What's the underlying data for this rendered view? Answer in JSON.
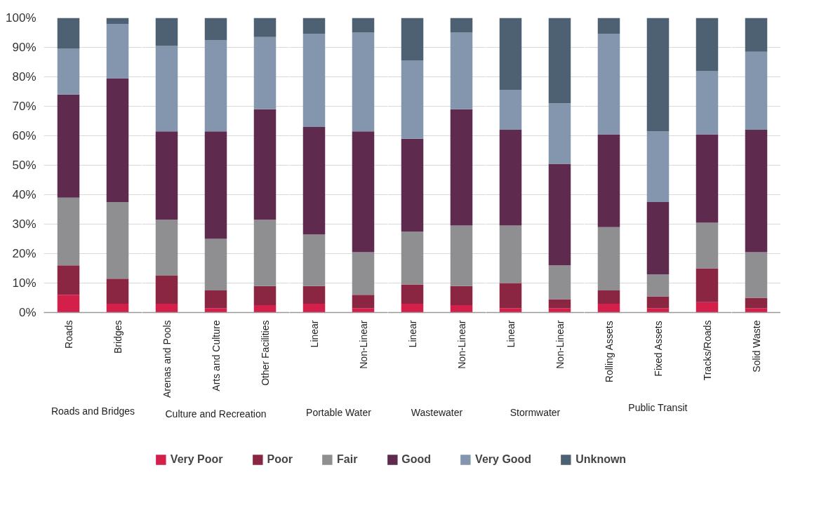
{
  "chart_data": [
    {
      "type": "bar",
      "stacked": true,
      "xlabel": "Roads and Bridges",
      "categories": [
        "Roads",
        "Bridges"
      ],
      "series": [
        {
          "name": "Very Poor",
          "color": "#d41f4b",
          "values": [
            6,
            3
          ]
        },
        {
          "name": "Poor",
          "color": "#8b2642",
          "values": [
            10,
            8.5
          ]
        },
        {
          "name": "Fair",
          "color": "#8f8f91",
          "values": [
            23,
            26
          ]
        },
        {
          "name": "Good",
          "color": "#5e2b4f",
          "values": [
            35,
            42
          ]
        },
        {
          "name": "Very Good",
          "color": "#8496ae",
          "values": [
            15.5,
            18.5
          ]
        },
        {
          "name": "Unknown",
          "color": "#4d6172",
          "values": [
            10.5,
            2
          ]
        }
      ],
      "ylim": [
        0,
        100
      ],
      "yticks": [
        {
          "value": 0,
          "label": "0%"
        },
        {
          "value": 10,
          "label": "10%"
        },
        {
          "value": 20,
          "label": "20%"
        },
        {
          "value": 30,
          "label": "30%"
        },
        {
          "value": 40,
          "label": "40%"
        },
        {
          "value": 50,
          "label": "50%"
        },
        {
          "value": 60,
          "label": "60%"
        },
        {
          "value": 70,
          "label": "70%"
        },
        {
          "value": 80,
          "label": "80%"
        },
        {
          "value": 90,
          "label": "90%"
        },
        {
          "value": 100,
          "label": "100%"
        }
      ],
      "grid": "y",
      "legend": "bottom"
    },
    {
      "type": "bar",
      "stacked": true,
      "xlabel": "Culture and Recreation",
      "categories": [
        "Arenas and Pools",
        "Arts and Culture",
        "Other Facilities"
      ],
      "series": [
        {
          "color": "#d41f4b",
          "values": [
            3,
            1.5,
            2.5
          ]
        },
        {
          "color": "#8b2642",
          "values": [
            9.5,
            6,
            6.5
          ]
        },
        {
          "color": "#8f8f91",
          "values": [
            19,
            17.5,
            22.5
          ]
        },
        {
          "color": "#5e2b4f",
          "values": [
            30,
            36.5,
            37.5
          ]
        },
        {
          "color": "#8496ae",
          "values": [
            29,
            31,
            24.5
          ]
        },
        {
          "color": "#4d6172",
          "values": [
            9.5,
            7.5,
            6.5
          ]
        }
      ],
      "ylim": [
        0,
        100
      ],
      "yticks": [
        0,
        10,
        20,
        30,
        40,
        50,
        60,
        70,
        80,
        90,
        100
      ],
      "tick_labels": "x",
      "grid": "y"
    },
    {
      "type": "bar",
      "stacked": true,
      "xlabel": "Portable Water",
      "categories": [
        "Linear",
        "Non-Linear"
      ],
      "series": [
        {
          "color": "#d41f4b",
          "values": [
            3,
            1.5
          ]
        },
        {
          "color": "#8b2642",
          "values": [
            6,
            4.5
          ]
        },
        {
          "color": "#8f8f91",
          "values": [
            17.5,
            14.5
          ]
        },
        {
          "color": "#5e2b4f",
          "values": [
            36.5,
            41
          ]
        },
        {
          "color": "#8496ae",
          "values": [
            31.5,
            33.5
          ]
        },
        {
          "color": "#4d6172",
          "values": [
            5.5,
            5
          ]
        }
      ],
      "ylim": [
        0,
        100
      ],
      "yticks": [
        0,
        10,
        20,
        30,
        40,
        50,
        60,
        70,
        80,
        90,
        100
      ],
      "tick_labels": "x",
      "grid": "y"
    },
    {
      "type": "bar",
      "stacked": true,
      "xlabel": "Wastewater",
      "categories": [
        "Linear",
        "Non-Linear"
      ],
      "series": [
        {
          "color": "#d41f4b",
          "values": [
            3,
            2.5
          ]
        },
        {
          "color": "#8b2642",
          "values": [
            6.5,
            6.5
          ]
        },
        {
          "color": "#8f8f91",
          "values": [
            18,
            20.5
          ]
        },
        {
          "color": "#5e2b4f",
          "values": [
            31.5,
            39.5
          ]
        },
        {
          "color": "#8496ae",
          "values": [
            26.5,
            26
          ]
        },
        {
          "color": "#4d6172",
          "values": [
            14.5,
            5
          ]
        }
      ],
      "ylim": [
        0,
        100
      ],
      "yticks": [
        0,
        10,
        20,
        30,
        40,
        50,
        60,
        70,
        80,
        90,
        100
      ],
      "tick_labels": "x",
      "grid": "y"
    },
    {
      "type": "bar",
      "stacked": true,
      "xlabel": "Stormwater",
      "categories": [
        "Linear",
        "Non-Linear"
      ],
      "series": [
        {
          "color": "#d41f4b",
          "values": [
            1.5,
            1.5
          ]
        },
        {
          "color": "#8b2642",
          "values": [
            8.5,
            3
          ]
        },
        {
          "color": "#8f8f91",
          "values": [
            19.5,
            11.5
          ]
        },
        {
          "color": "#5e2b4f",
          "values": [
            32.5,
            34.5
          ]
        },
        {
          "color": "#8496ae",
          "values": [
            13.5,
            20.5
          ]
        },
        {
          "color": "#4d6172",
          "values": [
            24.5,
            29
          ]
        }
      ],
      "ylim": [
        0,
        100
      ],
      "yticks": [
        0,
        10,
        20,
        30,
        40,
        50,
        60,
        70,
        80,
        90,
        100
      ],
      "tick_labels": "x",
      "grid": "y"
    },
    {
      "type": "bar",
      "stacked": true,
      "xlabel": "Public Transit",
      "categories": [
        "Rolling Assets",
        "Fixed Assets",
        "Tracks/Roads"
      ],
      "series": [
        {
          "color": "#d41f4b",
          "values": [
            3,
            1.5,
            3.5
          ]
        },
        {
          "color": "#8b2642",
          "values": [
            4.5,
            4,
            11.5
          ]
        },
        {
          "color": "#8f8f91",
          "values": [
            21.5,
            7.5,
            15.5
          ]
        },
        {
          "color": "#5e2b4f",
          "values": [
            31.5,
            24.5,
            30
          ]
        },
        {
          "color": "#8496ae",
          "values": [
            34,
            24,
            21.5
          ]
        },
        {
          "color": "#4d6172",
          "values": [
            5.5,
            38.5,
            18
          ]
        }
      ],
      "ylim": [
        0,
        100
      ],
      "yticks": [
        0,
        10,
        20,
        30,
        40,
        50,
        60,
        70,
        80,
        90,
        100
      ],
      "tick_labels": "x",
      "grid": "y"
    },
    {
      "type": "bar",
      "stacked": true,
      "categories": [
        "Solid Waste"
      ],
      "series": [
        {
          "color": "#d41f4b",
          "values": [
            1.5
          ]
        },
        {
          "color": "#8b2642",
          "values": [
            3.5
          ]
        },
        {
          "color": "#8f8f91",
          "values": [
            15.5
          ]
        },
        {
          "color": "#5e2b4f",
          "values": [
            41.5
          ]
        },
        {
          "color": "#8496ae",
          "values": [
            26.5
          ]
        },
        {
          "color": "#4d6172",
          "values": [
            11.5
          ]
        }
      ],
      "ylim": [
        0,
        100
      ],
      "yticks": [
        0,
        10,
        20,
        30,
        40,
        50,
        60,
        70,
        80,
        90,
        100
      ],
      "tick_labels": "x",
      "grid": "y"
    }
  ]
}
